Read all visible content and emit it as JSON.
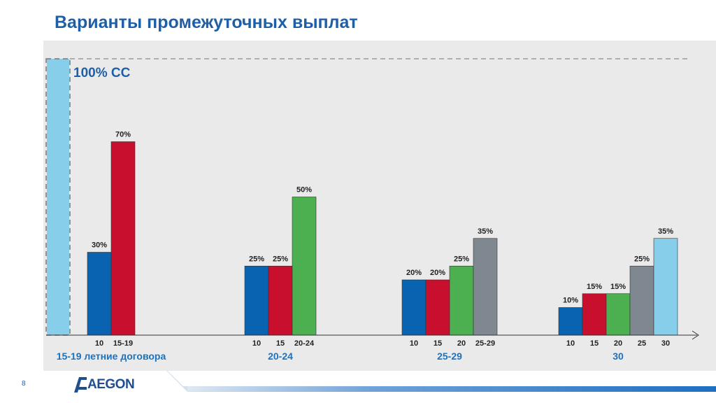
{
  "slide": {
    "title": "Варианты промежуточных выплат",
    "page_number": "8",
    "logo_text": "AEGON"
  },
  "colors": {
    "blue": "#0a63b0",
    "red": "#c8102e",
    "green": "#4caf50",
    "gray": "#7f8790",
    "lightblue": "#87ceeb",
    "title": "#1f5fa8",
    "group_label": "#1a72c0"
  },
  "chart_data": {
    "type": "bar",
    "reference": {
      "label": "100% CC",
      "value": 100
    },
    "ylim": [
      0,
      100
    ],
    "grid": false,
    "groups": [
      {
        "label": "15-19 летние договора",
        "bars": [
          {
            "category": "10",
            "value": 30,
            "value_label": "30%",
            "color": "blue"
          },
          {
            "category": "15-19",
            "value": 70,
            "value_label": "70%",
            "color": "red"
          }
        ]
      },
      {
        "label": "20-24",
        "bars": [
          {
            "category": "10",
            "value": 25,
            "value_label": "25%",
            "color": "blue"
          },
          {
            "category": "15",
            "value": 25,
            "value_label": "25%",
            "color": "red"
          },
          {
            "category": "20-24",
            "value": 50,
            "value_label": "50%",
            "color": "green"
          }
        ]
      },
      {
        "label": "25-29",
        "bars": [
          {
            "category": "10",
            "value": 20,
            "value_label": "20%",
            "color": "blue"
          },
          {
            "category": "15",
            "value": 20,
            "value_label": "20%",
            "color": "red"
          },
          {
            "category": "20",
            "value": 25,
            "value_label": "25%",
            "color": "green"
          },
          {
            "category": "25-29",
            "value": 35,
            "value_label": "35%",
            "color": "gray"
          }
        ]
      },
      {
        "label": "30",
        "bars": [
          {
            "category": "10",
            "value": 10,
            "value_label": "10%",
            "color": "blue"
          },
          {
            "category": "15",
            "value": 15,
            "value_label": "15%",
            "color": "red"
          },
          {
            "category": "20",
            "value": 15,
            "value_label": "15%",
            "color": "green"
          },
          {
            "category": "25",
            "value": 25,
            "value_label": "25%",
            "color": "gray"
          },
          {
            "category": "30",
            "value": 35,
            "value_label": "35%",
            "color": "lightblue"
          }
        ]
      }
    ]
  }
}
